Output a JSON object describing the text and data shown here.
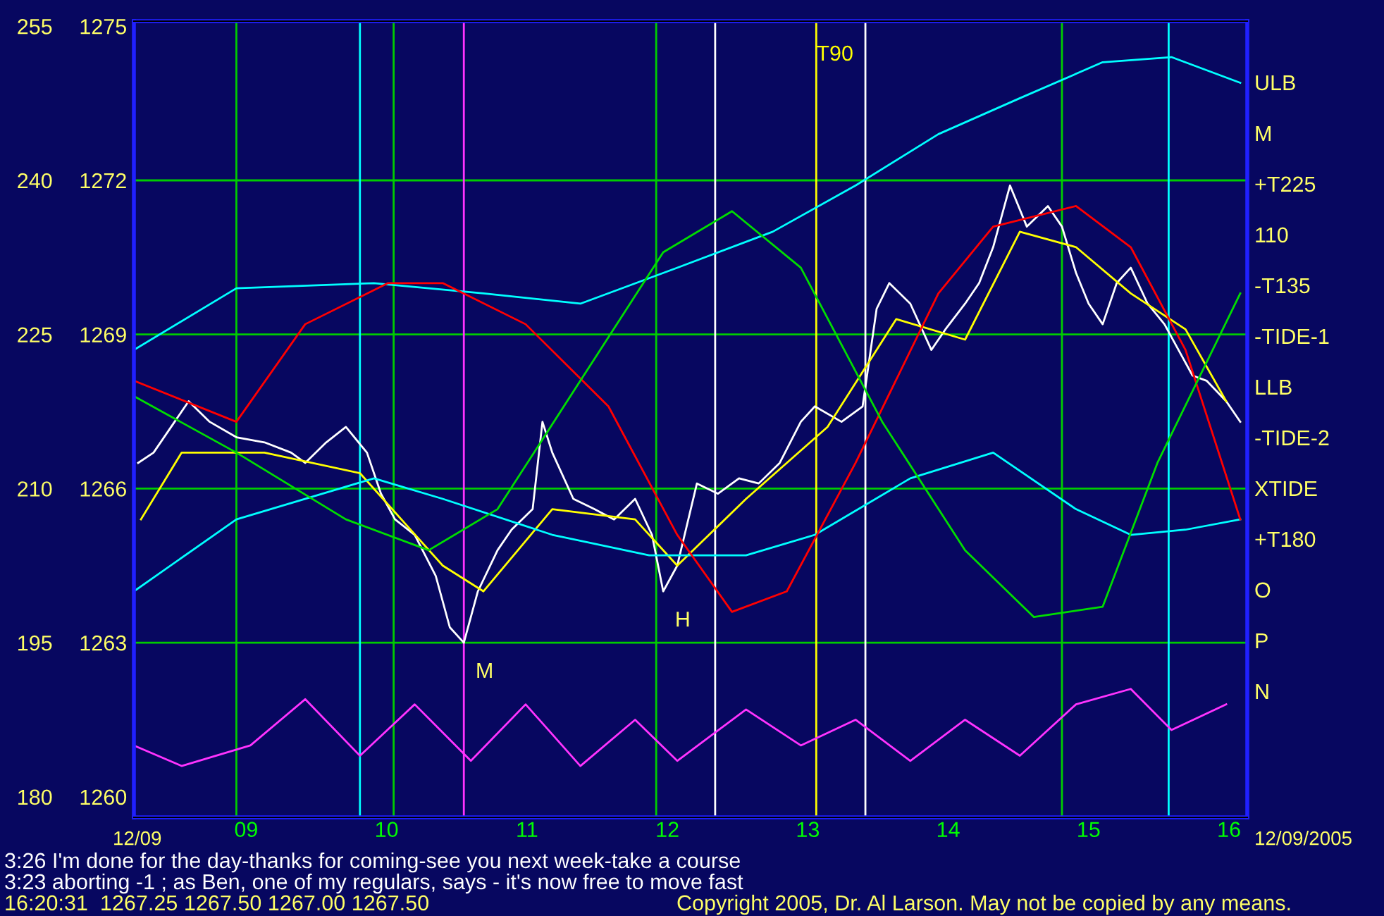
{
  "chart_data": {
    "type": "line",
    "series": [
      {
        "color": "#ffffff",
        "x": [
          8.23,
          8.34,
          8.49,
          8.59,
          8.74,
          8.93,
          9.13,
          9.32,
          9.42,
          9.57,
          9.71,
          9.86,
          9.96,
          10.06,
          10.2,
          10.35,
          10.45,
          10.55,
          10.65,
          10.79,
          10.89,
          11.04,
          11.11,
          11.18,
          11.33,
          11.48,
          11.62,
          11.77,
          11.89,
          11.97,
          12.07,
          12.21,
          12.36,
          12.51,
          12.65,
          12.8,
          12.95,
          13.05,
          13.24,
          13.39,
          13.49,
          13.58,
          13.73,
          13.88,
          13.98,
          14.12,
          14.22,
          14.32,
          14.44,
          14.56,
          14.71,
          14.81,
          14.91,
          15.0,
          15.1,
          15.2,
          15.3,
          15.42,
          15.54,
          15.64,
          15.74,
          15.84,
          15.98,
          16.08
        ],
        "values": [
          1266.5,
          1266.7,
          1267.3,
          1267.7,
          1267.3,
          1267.0,
          1266.9,
          1266.7,
          1266.5,
          1266.9,
          1267.2,
          1266.7,
          1265.9,
          1265.4,
          1265.1,
          1264.3,
          1263.3,
          1263.0,
          1264.0,
          1264.8,
          1265.2,
          1265.6,
          1267.3,
          1266.7,
          1265.8,
          1265.6,
          1265.4,
          1265.8,
          1265.1,
          1264.0,
          1264.5,
          1266.1,
          1265.9,
          1266.2,
          1266.1,
          1266.5,
          1267.3,
          1267.6,
          1267.3,
          1267.6,
          1269.5,
          1270.0,
          1269.6,
          1268.7,
          1269.1,
          1269.6,
          1270.0,
          1270.7,
          1271.9,
          1271.1,
          1271.5,
          1271.1,
          1270.2,
          1269.6,
          1269.2,
          1270.0,
          1270.3,
          1269.6,
          1269.2,
          1268.7,
          1268.2,
          1268.1,
          1267.7,
          1267.3
        ]
      },
      {
        "color": "#ffff00",
        "x": [
          8.25,
          8.54,
          9.13,
          9.81,
          10.4,
          10.69,
          11.18,
          11.77,
          12.07,
          12.56,
          13.14,
          13.63,
          14.12,
          14.51,
          14.91,
          15.3,
          15.69,
          15.98
        ],
        "values": [
          1265.4,
          1266.7,
          1266.7,
          1266.3,
          1264.5,
          1264.0,
          1265.6,
          1265.4,
          1264.5,
          1265.8,
          1267.2,
          1269.3,
          1268.9,
          1271.0,
          1270.7,
          1269.8,
          1269.1,
          1267.7
        ]
      },
      {
        "color": "#00ffff",
        "x": [
          8.2,
          8.93,
          9.91,
          10.69,
          11.38,
          12.07,
          12.75,
          13.34,
          13.93,
          14.51,
          15.1,
          15.59,
          16.08
        ],
        "values": [
          1268.7,
          1269.9,
          1270.0,
          1269.8,
          1269.6,
          1270.3,
          1271.0,
          1271.9,
          1272.9,
          1273.6,
          1274.3,
          1274.4,
          1273.9
        ]
      },
      {
        "color": "#00ffff",
        "x": [
          8.2,
          8.93,
          9.91,
          10.4,
          11.18,
          11.87,
          12.56,
          13.05,
          13.73,
          14.32,
          14.91,
          15.3,
          15.69,
          16.08
        ],
        "values": [
          1264.0,
          1265.4,
          1266.2,
          1265.8,
          1265.1,
          1264.7,
          1264.7,
          1265.1,
          1266.2,
          1266.7,
          1265.6,
          1265.1,
          1265.2,
          1265.4
        ]
      },
      {
        "color": "#ff0000",
        "x": [
          8.2,
          8.93,
          9.42,
          10.01,
          10.4,
          10.99,
          11.58,
          12.07,
          12.46,
          12.85,
          13.34,
          13.93,
          14.32,
          14.91,
          15.3,
          15.69,
          16.08
        ],
        "values": [
          1268.1,
          1267.3,
          1269.2,
          1270.0,
          1270.0,
          1269.2,
          1267.6,
          1265.1,
          1263.6,
          1264.0,
          1266.5,
          1269.8,
          1271.1,
          1271.5,
          1270.7,
          1268.7,
          1265.4
        ]
      },
      {
        "color": "#00dd00",
        "x": [
          8.2,
          8.93,
          9.71,
          10.3,
          10.79,
          11.38,
          11.97,
          12.46,
          12.95,
          13.53,
          14.12,
          14.61,
          15.1,
          15.49,
          16.08
        ],
        "values": [
          1267.8,
          1266.7,
          1265.4,
          1264.8,
          1265.6,
          1268.1,
          1270.6,
          1271.4,
          1270.3,
          1267.3,
          1264.8,
          1263.5,
          1263.7,
          1266.5,
          1269.8
        ]
      },
      {
        "color": "#ff33ff",
        "x": [
          8.2,
          8.54,
          9.03,
          9.42,
          9.81,
          10.2,
          10.6,
          10.99,
          11.38,
          11.77,
          12.07,
          12.56,
          12.95,
          13.34,
          13.73,
          14.12,
          14.51,
          14.91,
          15.3,
          15.59,
          15.98
        ],
        "values": [
          1261.0,
          1260.6,
          1261.0,
          1261.9,
          1260.8,
          1261.8,
          1260.7,
          1261.8,
          1260.6,
          1261.5,
          1260.7,
          1261.7,
          1261.0,
          1261.5,
          1260.7,
          1261.5,
          1260.8,
          1261.8,
          1262.1,
          1261.3,
          1261.8
        ]
      }
    ],
    "xlim": [
      8.2,
      16.13
    ],
    "xticks": [
      {
        "value": 9,
        "label": "09"
      },
      10,
      11,
      12,
      13,
      14,
      15,
      16
    ],
    "ylim": [
      1259.6,
      1275.1
    ],
    "yticks": [
      1260,
      1263,
      1266,
      1269,
      1272,
      1275
    ],
    "y2lim": [
      178,
      255.5
    ],
    "y2ticks": [
      180,
      195,
      210,
      225,
      240,
      255
    ],
    "grid": false,
    "legend": false,
    "ref_lines": [
      {
        "axis": "y",
        "value": 1263,
        "color": "#00cc00"
      },
      {
        "axis": "y",
        "value": 1266,
        "color": "#00cc00"
      },
      {
        "axis": "y",
        "value": 1269,
        "color": "#00cc00"
      },
      {
        "axis": "y",
        "value": 1272,
        "color": "#00cc00"
      },
      {
        "axis": "x",
        "value": 8.93,
        "color": "#00cc00"
      },
      {
        "axis": "x",
        "value": 9.81,
        "color": "#00ffff"
      },
      {
        "axis": "x",
        "value": 10.05,
        "color": "#00cc00"
      },
      {
        "axis": "x",
        "value": 10.55,
        "color": "#ff33ff"
      },
      {
        "axis": "x",
        "value": 11.92,
        "color": "#00cc00"
      },
      {
        "axis": "x",
        "value": 12.34,
        "color": "#ffffff"
      },
      {
        "axis": "x",
        "value": 13.06,
        "color": "#ffff00",
        "label": "T90"
      },
      {
        "axis": "x",
        "value": 13.41,
        "color": "#ffffff"
      },
      {
        "axis": "x",
        "value": 14.81,
        "color": "#00cc00"
      },
      {
        "axis": "x",
        "value": 15.57,
        "color": "#00ffff"
      }
    ],
    "annotations": [
      {
        "text": "M",
        "x": 10.55,
        "y": 1263.0
      },
      {
        "text": "H",
        "x": 11.97,
        "y": 1264.0
      },
      "ULB",
      "M",
      "+T225",
      "110",
      "-T135",
      "-TIDE-1",
      "LLB",
      "-TIDE-2",
      "XTIDE",
      "+T180",
      "O",
      "P",
      "N",
      "12/09",
      "12/09/2005",
      "3:26 I'm done for the day-thanks for coming-see you next week-take a course",
      "3:23 aborting -1 ; as Ben, one of my regulars, says - it's now free to move fast",
      "16:20:31  1267.25 1267.50 1267.00 1267.50",
      "Copyright 2005, Dr. Al Larson. May not be copied by any means."
    ]
  }
}
